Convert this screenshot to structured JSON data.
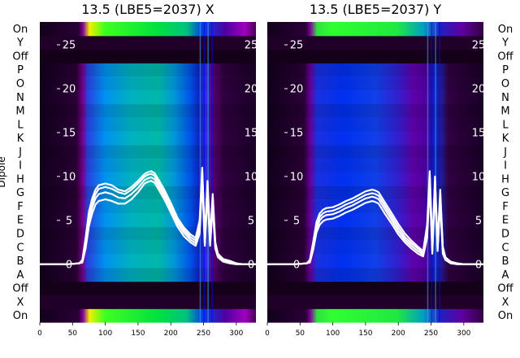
{
  "chart_data": [
    {
      "type": "heatmap",
      "title": "13.5 (LBE5=2037) X",
      "ylabel": "Dipole",
      "y_categories": [
        "On",
        "X",
        "Off",
        "A",
        "B",
        "C",
        "D",
        "E",
        "F",
        "G",
        "H",
        "I",
        "J",
        "K",
        "L",
        "M",
        "N",
        "O",
        "P",
        "Off",
        "Y",
        "On"
      ],
      "x_ticks": [
        0,
        50,
        100,
        150,
        200,
        250,
        300
      ],
      "xlim": [
        0,
        330
      ],
      "profile_ylim": [
        -6.6,
        27.6
      ],
      "profile_ticks": [
        0,
        5,
        10,
        15,
        20,
        25
      ],
      "profile_x": [
        0,
        20,
        40,
        60,
        65,
        70,
        75,
        80,
        85,
        90,
        100,
        110,
        120,
        130,
        140,
        150,
        160,
        165,
        170,
        175,
        180,
        190,
        200,
        210,
        220,
        230,
        238,
        244,
        248,
        252,
        256,
        260,
        264,
        268,
        272,
        280,
        290,
        300,
        310,
        320,
        330
      ],
      "profile_lines": [
        [
          0,
          0,
          0,
          0.1,
          0.5,
          3,
          6,
          7.5,
          8.5,
          9,
          9.2,
          9,
          8.5,
          8.3,
          8.8,
          9.5,
          10.3,
          10.5,
          10.6,
          10.4,
          9.8,
          8.5,
          7,
          5.3,
          4.2,
          3.4,
          3,
          5,
          11,
          3,
          9.5,
          3,
          8,
          2.5,
          1.2,
          0.6,
          0.4,
          0.1,
          0,
          0,
          0
        ],
        [
          0,
          0,
          0,
          0.1,
          0.4,
          2.6,
          5.5,
          7,
          8,
          8.6,
          8.8,
          8.6,
          8.2,
          8,
          8.5,
          9.2,
          10,
          10.2,
          10.3,
          10.1,
          9.5,
          8.2,
          6.7,
          5,
          3.9,
          3.1,
          2.7,
          4.5,
          10.5,
          2.7,
          9,
          2.7,
          7.5,
          2.2,
          1,
          0.5,
          0.3,
          0.1,
          0,
          0,
          0
        ],
        [
          0,
          0,
          0,
          0.1,
          0.3,
          2.2,
          5,
          6.5,
          7.5,
          8,
          8.2,
          8,
          7.6,
          7.5,
          8,
          8.7,
          9.6,
          9.8,
          9.9,
          9.7,
          9.1,
          7.8,
          6.3,
          4.7,
          3.6,
          2.8,
          2.4,
          4,
          10,
          2.4,
          8.5,
          2.4,
          7,
          2,
          0.9,
          0.4,
          0.2,
          0.1,
          0,
          0,
          0
        ],
        [
          0,
          0,
          0,
          0.1,
          0.2,
          1.8,
          4.4,
          5.8,
          6.8,
          7.2,
          7.4,
          7.2,
          6.9,
          6.9,
          7.4,
          8.2,
          9.2,
          9.4,
          9.5,
          9.3,
          8.7,
          7.4,
          5.9,
          4.3,
          3.2,
          2.5,
          2.1,
          3.5,
          9.5,
          2.1,
          8,
          2.1,
          6.5,
          1.8,
          0.8,
          0.3,
          0.1,
          0,
          0,
          0,
          0
        ]
      ]
    },
    {
      "type": "heatmap",
      "title": "13.5 (LBE5=2037) Y",
      "ylabel": "",
      "y_categories": [
        "On",
        "X",
        "Off",
        "A",
        "B",
        "C",
        "D",
        "E",
        "F",
        "G",
        "H",
        "I",
        "J",
        "K",
        "L",
        "M",
        "N",
        "O",
        "P",
        "Off",
        "Y",
        "On"
      ],
      "x_ticks": [
        0,
        50,
        100,
        150,
        200,
        250,
        300
      ],
      "xlim": [
        0,
        330
      ],
      "profile_ylim": [
        -6.6,
        27.6
      ],
      "profile_ticks": [
        0,
        5,
        10,
        15,
        20,
        25
      ],
      "profile_x": [
        0,
        20,
        40,
        60,
        65,
        70,
        75,
        80,
        85,
        90,
        100,
        110,
        120,
        130,
        140,
        150,
        160,
        165,
        170,
        175,
        180,
        190,
        200,
        210,
        220,
        230,
        238,
        244,
        248,
        252,
        256,
        260,
        264,
        268,
        272,
        280,
        290,
        300,
        310,
        320,
        330
      ],
      "profile_lines": [
        [
          0,
          0,
          0,
          0.1,
          0.5,
          2.5,
          4.8,
          5.8,
          6.2,
          6.4,
          6.5,
          6.8,
          7.2,
          7.5,
          7.9,
          8.3,
          8.5,
          8.4,
          8.2,
          7.6,
          7,
          5.8,
          4.6,
          3.5,
          2.7,
          2,
          1.5,
          4.5,
          10.6,
          2,
          10,
          2.2,
          8.5,
          2,
          0.8,
          0.3,
          0.1,
          0,
          0,
          0,
          0
        ],
        [
          0,
          0,
          0,
          0.1,
          0.4,
          2.2,
          4.4,
          5.4,
          5.8,
          6,
          6.1,
          6.4,
          6.8,
          7.1,
          7.5,
          7.9,
          8.1,
          8,
          7.8,
          7.2,
          6.6,
          5.4,
          4.2,
          3.1,
          2.4,
          1.8,
          1.3,
          4,
          10,
          1.8,
          9.5,
          2,
          8,
          1.8,
          0.7,
          0.2,
          0.1,
          0,
          0,
          0,
          0
        ],
        [
          0,
          0,
          0,
          0.1,
          0.3,
          1.9,
          4,
          5,
          5.4,
          5.6,
          5.7,
          6,
          6.4,
          6.7,
          7.1,
          7.5,
          7.7,
          7.6,
          7.4,
          6.8,
          6.2,
          5,
          3.8,
          2.8,
          2.1,
          1.5,
          1.1,
          3.5,
          9.5,
          1.5,
          9,
          1.8,
          7.5,
          1.5,
          0.6,
          0.2,
          0.1,
          0,
          0,
          0,
          0
        ],
        [
          0,
          0,
          0,
          0.1,
          0.2,
          1.6,
          3.6,
          4.5,
          4.9,
          5.1,
          5.2,
          5.5,
          5.9,
          6.2,
          6.6,
          7,
          7.2,
          7.1,
          6.9,
          6.3,
          5.7,
          4.6,
          3.4,
          2.5,
          1.8,
          1.2,
          0.9,
          3,
          9,
          1.2,
          8.5,
          1.5,
          7,
          1.2,
          0.5,
          0.1,
          0,
          0,
          0,
          0,
          0
        ]
      ]
    }
  ]
}
